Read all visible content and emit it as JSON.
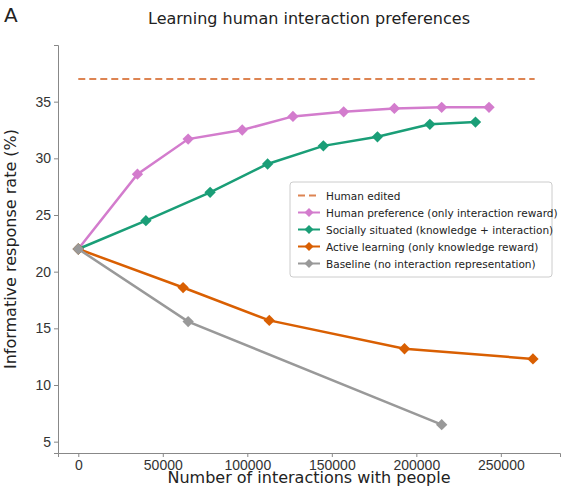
{
  "chart_data": {
    "type": "line",
    "title": "Learning human interaction preferences",
    "panel_label": "A",
    "x_label": "Number of interactions with people",
    "y_label": "Informative response rate (%)",
    "xlim": [
      -12000,
      285000
    ],
    "xticks": [
      0,
      50000,
      100000,
      150000,
      200000,
      250000
    ],
    "ylim": [
      4,
      40
    ],
    "yticks": [
      5,
      10,
      15,
      20,
      25,
      30,
      35
    ],
    "grid": false,
    "legend": "right",
    "series": [
      {
        "name": "Human edited",
        "color": "#dd8452",
        "line_style": "dashed",
        "marker": "none",
        "x": [
          0,
          270000
        ],
        "values": [
          37,
          37
        ]
      },
      {
        "name": "Human preference (only interaction reward)",
        "color": "#d37ccd",
        "line_style": "solid",
        "marker": "diamond",
        "x": [
          0,
          35000,
          65000,
          97000,
          127000,
          157000,
          187000,
          215000,
          243000
        ],
        "values": [
          22,
          28.6,
          31.7,
          32.5,
          33.7,
          34.1,
          34.4,
          34.5,
          34.5
        ]
      },
      {
        "name": "Socially situated (knowledge + interaction)",
        "color": "#1a9e77",
        "line_style": "solid",
        "marker": "diamond",
        "x": [
          0,
          40000,
          78000,
          112000,
          145000,
          177000,
          208000,
          235000
        ],
        "values": [
          22,
          24.5,
          27,
          29.5,
          31.1,
          31.9,
          33,
          33.2
        ]
      },
      {
        "name": "Active learning (only knowledge reward)",
        "color": "#d95f02",
        "line_style": "solid",
        "marker": "diamond",
        "x": [
          0,
          62000,
          113000,
          193000,
          269000
        ],
        "values": [
          22,
          18.6,
          15.7,
          13.2,
          12.3
        ]
      },
      {
        "name": "Baseline (no interaction representation)",
        "color": "#999999",
        "line_style": "solid",
        "marker": "diamond",
        "x": [
          0,
          65000,
          215000
        ],
        "values": [
          22,
          15.6,
          6.5
        ]
      }
    ]
  }
}
